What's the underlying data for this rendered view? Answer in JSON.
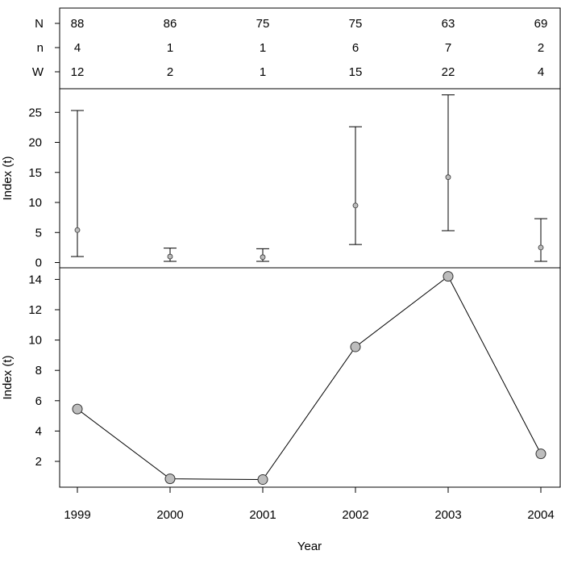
{
  "chart_data": [
    {
      "type": "table",
      "row_labels": [
        "N",
        "n",
        "W"
      ],
      "columns": [
        "1999",
        "2000",
        "2001",
        "2002",
        "2003",
        "2004"
      ],
      "rows": [
        [
          88,
          86,
          75,
          75,
          63,
          69
        ],
        [
          4,
          1,
          1,
          6,
          7,
          2
        ],
        [
          12,
          2,
          1,
          15,
          22,
          4
        ]
      ]
    },
    {
      "type": "scatter",
      "ylabel": "Index (t)",
      "x": [
        1999,
        2000,
        2001,
        2002,
        2003,
        2004
      ],
      "y": [
        5.4,
        1.0,
        0.9,
        9.5,
        14.2,
        2.5
      ],
      "lower": [
        1.0,
        0.2,
        0.2,
        3.0,
        5.3,
        0.2
      ],
      "upper": [
        25.3,
        2.4,
        2.3,
        22.6,
        27.9,
        7.3
      ],
      "yticks": [
        0,
        5,
        10,
        15,
        20,
        25
      ],
      "ylim": [
        -0.6,
        29.2
      ],
      "grid": false
    },
    {
      "type": "line",
      "ylabel": "Index (t)",
      "xlabel": "Year",
      "x": [
        1999,
        2000,
        2001,
        2002,
        2003,
        2004
      ],
      "y": [
        5.45,
        0.85,
        0.8,
        9.55,
        14.2,
        2.5
      ],
      "yticks": [
        2,
        4,
        6,
        8,
        10,
        12,
        14
      ],
      "xticks": [
        "1999",
        "2000",
        "2001",
        "2002",
        "2003",
        "2004"
      ],
      "ylim": [
        0.35,
        14.8
      ],
      "grid": false
    }
  ]
}
